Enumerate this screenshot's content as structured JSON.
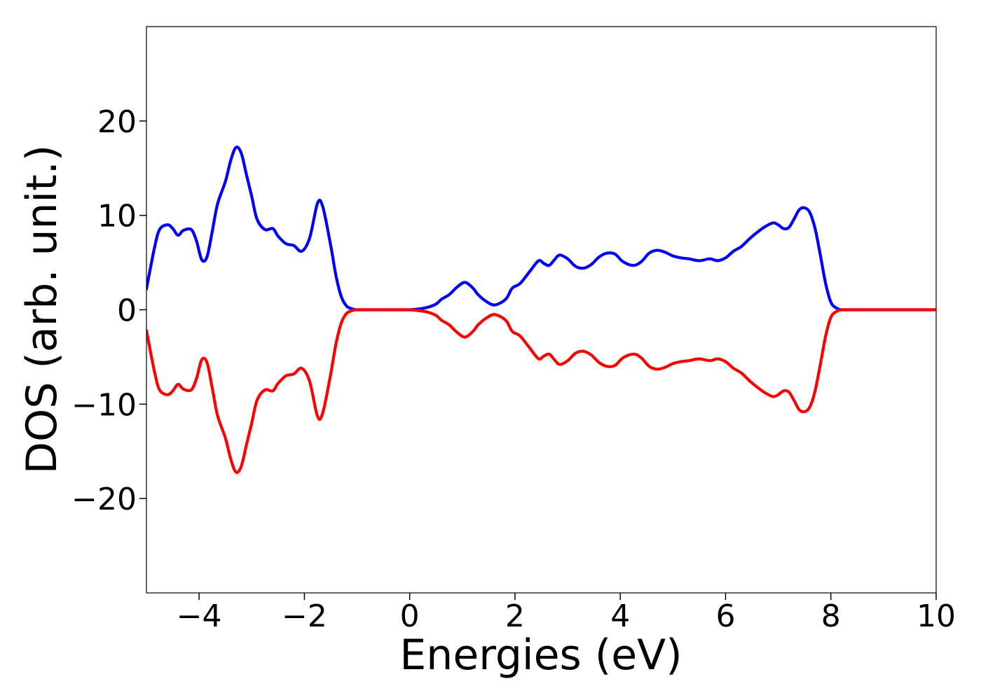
{
  "chart_data": {
    "type": "line",
    "title": "",
    "xlabel": "Energies (eV)",
    "ylabel": "DOS (arb. unit.)",
    "xlim": [
      -5,
      10
    ],
    "ylim": [
      -30,
      30
    ],
    "grid": false,
    "legend": "none",
    "xticks": [
      -4,
      -2,
      0,
      2,
      4,
      6,
      8,
      10
    ],
    "yticks": [
      -20,
      -10,
      0,
      10,
      20
    ],
    "xtick_labels": [
      "−4",
      "−2",
      "0",
      "2",
      "4",
      "6",
      "8",
      "10"
    ],
    "ytick_labels": [
      "−20",
      "−10",
      "0",
      "10",
      "20"
    ],
    "series": [
      {
        "color": "#0000ff",
        "x": [
          -5.0,
          -4.85,
          -4.75,
          -4.6,
          -4.5,
          -4.4,
          -4.3,
          -4.15,
          -4.05,
          -3.95,
          -3.85,
          -3.75,
          -3.65,
          -3.5,
          -3.4,
          -3.3,
          -3.2,
          -3.1,
          -3.0,
          -2.9,
          -2.75,
          -2.6,
          -2.5,
          -2.35,
          -2.2,
          -2.05,
          -1.9,
          -1.75,
          -1.65,
          -1.5,
          -1.4,
          -1.3,
          -1.2,
          -1.1,
          -1.0,
          -0.85,
          -0.7,
          -0.55,
          -0.4,
          -0.2,
          0.0,
          0.3,
          0.5,
          0.6,
          0.75,
          0.9,
          1.05,
          1.2,
          1.3,
          1.45,
          1.6,
          1.75,
          1.85,
          1.95,
          2.1,
          2.3,
          2.45,
          2.55,
          2.65,
          2.75,
          2.85,
          3.0,
          3.15,
          3.3,
          3.45,
          3.6,
          3.75,
          3.9,
          4.05,
          4.25,
          4.4,
          4.55,
          4.7,
          4.85,
          5.0,
          5.15,
          5.3,
          5.5,
          5.7,
          5.85,
          6.0,
          6.15,
          6.3,
          6.45,
          6.6,
          6.75,
          6.9,
          7.0,
          7.1,
          7.2,
          7.3,
          7.4,
          7.5,
          7.6,
          7.7,
          7.8,
          7.9,
          8.0,
          8.1,
          8.2,
          8.35,
          8.6,
          9.0,
          9.5,
          10.0
        ],
        "y": [
          2.2,
          6.5,
          8.5,
          9.0,
          8.6,
          7.9,
          8.4,
          8.5,
          7.3,
          5.3,
          5.6,
          8.3,
          11.2,
          13.6,
          15.8,
          17.2,
          16.6,
          14.3,
          12.0,
          9.6,
          8.5,
          8.6,
          7.8,
          7.0,
          6.8,
          6.2,
          7.6,
          11.3,
          10.9,
          6.8,
          3.6,
          1.4,
          0.4,
          0.1,
          0.0,
          0.0,
          0.0,
          0.0,
          0.0,
          0.0,
          0.0,
          0.2,
          0.6,
          1.1,
          1.6,
          2.4,
          2.9,
          2.3,
          1.6,
          0.9,
          0.5,
          0.8,
          1.3,
          2.3,
          2.8,
          4.2,
          5.2,
          4.9,
          4.7,
          5.3,
          5.8,
          5.4,
          4.6,
          4.4,
          4.8,
          5.6,
          6.0,
          5.9,
          5.1,
          4.7,
          5.1,
          6.0,
          6.3,
          6.1,
          5.7,
          5.5,
          5.4,
          5.2,
          5.4,
          5.2,
          5.5,
          6.2,
          6.7,
          7.5,
          8.2,
          8.8,
          9.2,
          9.0,
          8.6,
          8.7,
          9.6,
          10.6,
          10.8,
          10.3,
          8.6,
          5.8,
          2.8,
          0.8,
          0.2,
          0.0,
          0.0,
          0.0,
          0.0,
          0.0,
          0.0
        ]
      },
      {
        "color": "#ff0000",
        "x": [
          -5.0,
          -4.85,
          -4.75,
          -4.6,
          -4.5,
          -4.4,
          -4.3,
          -4.15,
          -4.05,
          -3.95,
          -3.85,
          -3.75,
          -3.65,
          -3.5,
          -3.4,
          -3.3,
          -3.2,
          -3.1,
          -3.0,
          -2.9,
          -2.75,
          -2.6,
          -2.5,
          -2.35,
          -2.2,
          -2.05,
          -1.9,
          -1.75,
          -1.65,
          -1.5,
          -1.4,
          -1.3,
          -1.2,
          -1.1,
          -1.0,
          -0.85,
          -0.7,
          -0.55,
          -0.4,
          -0.2,
          0.0,
          0.3,
          0.5,
          0.6,
          0.75,
          0.9,
          1.05,
          1.2,
          1.3,
          1.45,
          1.6,
          1.75,
          1.85,
          1.95,
          2.1,
          2.3,
          2.45,
          2.55,
          2.65,
          2.75,
          2.85,
          3.0,
          3.15,
          3.3,
          3.45,
          3.6,
          3.75,
          3.9,
          4.05,
          4.25,
          4.4,
          4.55,
          4.7,
          4.85,
          5.0,
          5.15,
          5.3,
          5.5,
          5.7,
          5.85,
          6.0,
          6.15,
          6.3,
          6.45,
          6.6,
          6.75,
          6.9,
          7.0,
          7.1,
          7.2,
          7.3,
          7.4,
          7.5,
          7.6,
          7.7,
          7.8,
          7.9,
          8.0,
          8.1,
          8.2,
          8.35,
          8.6,
          9.0,
          9.5,
          10.0
        ],
        "y": [
          -2.2,
          -6.5,
          -8.5,
          -9.0,
          -8.6,
          -7.9,
          -8.4,
          -8.5,
          -7.3,
          -5.3,
          -5.6,
          -8.3,
          -11.2,
          -13.6,
          -15.8,
          -17.2,
          -16.6,
          -14.3,
          -12.0,
          -9.6,
          -8.5,
          -8.6,
          -7.8,
          -7.0,
          -6.8,
          -6.2,
          -7.6,
          -11.3,
          -10.9,
          -6.8,
          -3.6,
          -1.4,
          -0.4,
          -0.1,
          0.0,
          0.0,
          0.0,
          0.0,
          0.0,
          0.0,
          0.0,
          -0.2,
          -0.6,
          -1.1,
          -1.6,
          -2.4,
          -2.9,
          -2.3,
          -1.6,
          -0.9,
          -0.5,
          -0.8,
          -1.3,
          -2.3,
          -2.8,
          -4.2,
          -5.2,
          -4.9,
          -4.7,
          -5.3,
          -5.8,
          -5.4,
          -4.6,
          -4.4,
          -4.8,
          -5.6,
          -6.0,
          -5.9,
          -5.1,
          -4.7,
          -5.1,
          -6.0,
          -6.3,
          -6.1,
          -5.7,
          -5.5,
          -5.4,
          -5.2,
          -5.4,
          -5.2,
          -5.5,
          -6.2,
          -6.7,
          -7.5,
          -8.2,
          -8.8,
          -9.2,
          -9.0,
          -8.6,
          -8.7,
          -9.6,
          -10.6,
          -10.8,
          -10.3,
          -8.6,
          -5.8,
          -2.8,
          -0.8,
          -0.2,
          0.0,
          0.0,
          0.0,
          0.0,
          0.0,
          0.0
        ]
      }
    ]
  }
}
